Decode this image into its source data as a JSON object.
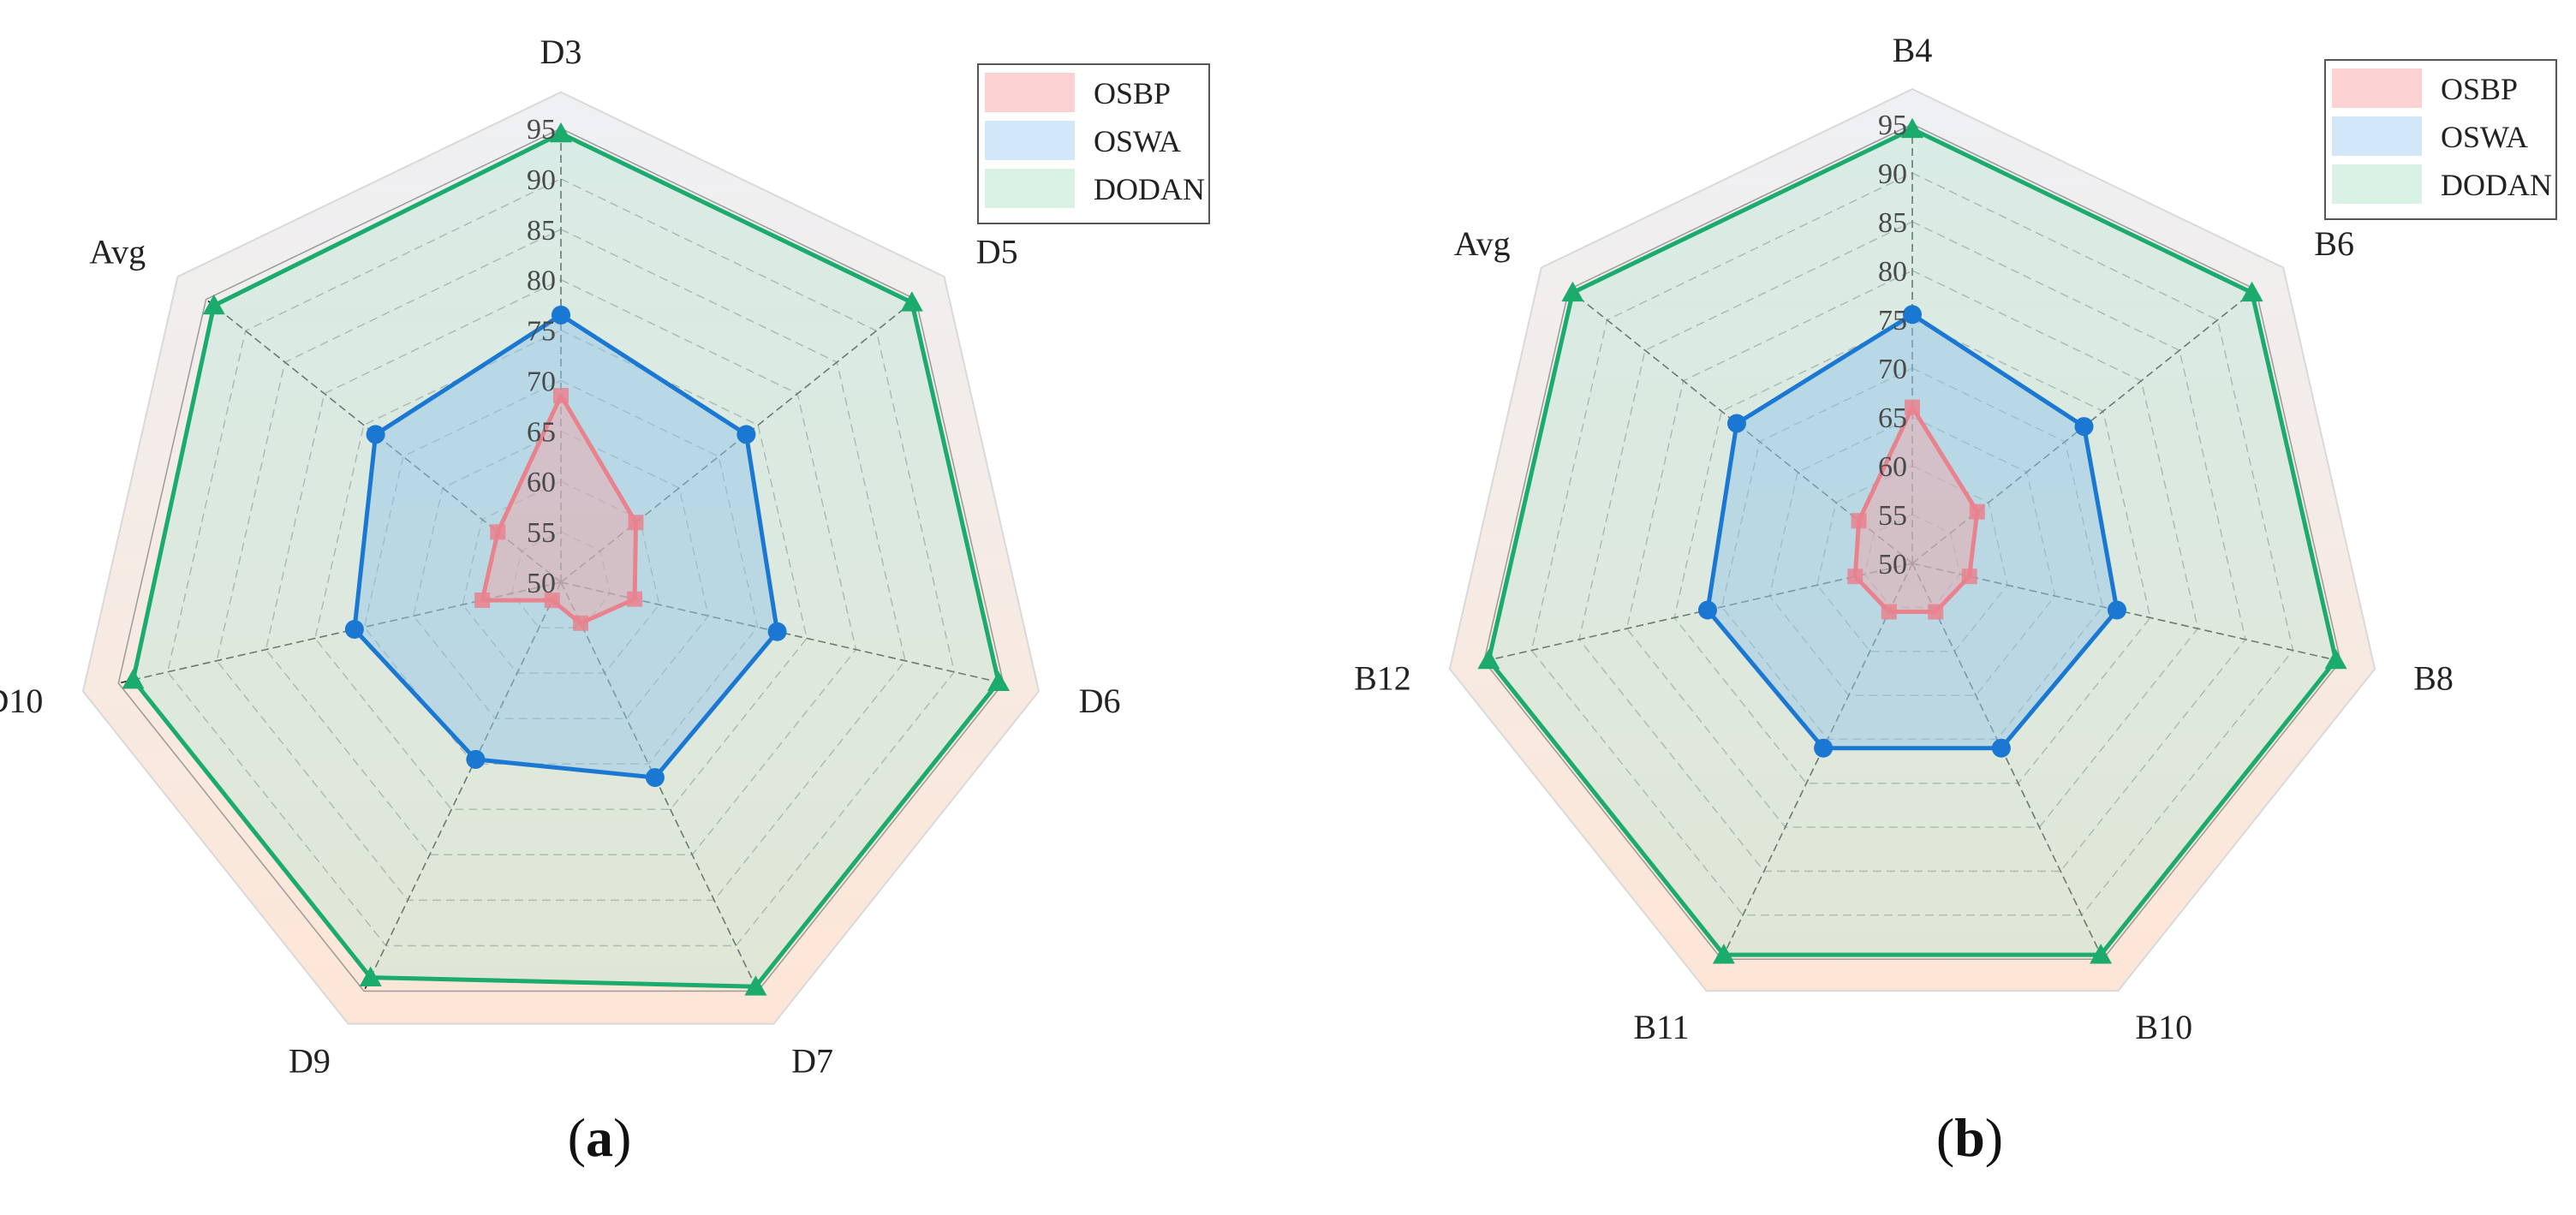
{
  "colors": {
    "OSBP": {
      "fill": "#f4a3a3",
      "line": "#e8838e",
      "marker": "#e8838e",
      "fill_opacity": 0.45
    },
    "OSWA": {
      "fill": "#8fc3ea",
      "line": "#1a78d2",
      "marker": "#1a78d2",
      "fill_opacity": 0.45
    },
    "DODAN": {
      "fill": "#bfe6d6",
      "line": "#1aab6d",
      "marker": "#1aab6d",
      "fill_opacity": 0.45
    },
    "legend_OSBP": "#fbd1d1",
    "legend_OSWA": "#d2e8f8",
    "legend_DODAN": "#daf1e6",
    "background_top": "#eef0f4",
    "background_bottom": "#fde6d6",
    "grid": "#9a9a9a",
    "spoke": "#222222"
  },
  "chart_data": [
    {
      "type": "radar",
      "panel_label": "a",
      "axes": [
        "D3",
        "D5",
        "D6",
        "D7",
        "D9",
        "D10",
        "Avg"
      ],
      "range": [
        50,
        95
      ],
      "ticks": [
        50,
        55,
        60,
        65,
        70,
        75,
        80,
        85,
        90,
        95
      ],
      "legend": [
        "OSBP",
        "OSWA",
        "DODAN"
      ],
      "legend_position": "top-right",
      "series": [
        {
          "name": "OSBP",
          "marker": "square",
          "values": [
            68.5,
            59.5,
            57.5,
            54.5,
            52,
            58,
            58
          ]
        },
        {
          "name": "OSWA",
          "marker": "circle",
          "values": [
            76.5,
            73.5,
            72,
            71.5,
            69.5,
            71,
            73.5
          ]
        },
        {
          "name": "DODAN",
          "marker": "triangle",
          "values": [
            94.5,
            94.5,
            94.5,
            94.5,
            93.5,
            93.5,
            94
          ]
        }
      ]
    },
    {
      "type": "radar",
      "panel_label": "b",
      "axes": [
        "B4",
        "B6",
        "B8",
        "B10",
        "B11",
        "B12",
        "Avg"
      ],
      "range": [
        50,
        95
      ],
      "ticks": [
        50,
        55,
        60,
        65,
        70,
        75,
        80,
        85,
        90,
        95
      ],
      "legend": [
        "OSBP",
        "OSWA",
        "DODAN"
      ],
      "legend_position": "top-right",
      "series": [
        {
          "name": "OSBP",
          "marker": "square",
          "values": [
            66,
            58.5,
            56,
            55.5,
            55.5,
            56,
            57
          ]
        },
        {
          "name": "OSWA",
          "marker": "circle",
          "values": [
            75.5,
            72.5,
            71.5,
            71,
            71,
            71.5,
            73
          ]
        },
        {
          "name": "DODAN",
          "marker": "triangle",
          "values": [
            94.5,
            94.5,
            94.5,
            94.5,
            94.5,
            94.5,
            94.5
          ]
        }
      ]
    }
  ]
}
